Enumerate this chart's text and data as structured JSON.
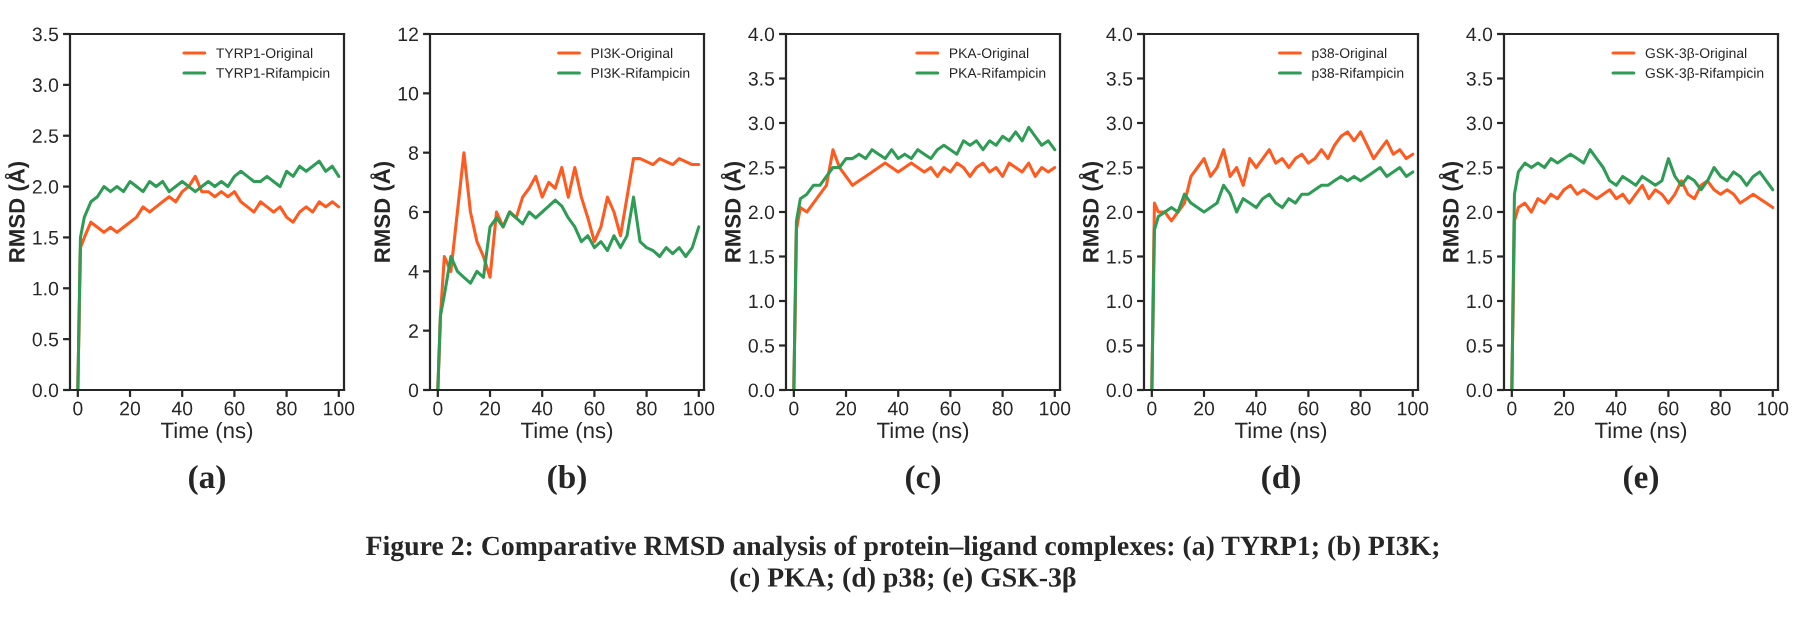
{
  "chart_data": [
    {
      "type": "line",
      "xlabel": "Time (ns)",
      "ylabel": "RMSD (Å)",
      "annotations": [
        "(a)"
      ],
      "xlim": [
        -3,
        102
      ],
      "xticks": [
        0,
        20,
        40,
        60,
        80,
        100
      ],
      "ylim": [
        0,
        3.5
      ],
      "yticks": [
        {
          "value": 0,
          "label": "0.0"
        },
        0.5,
        {
          "value": 1,
          "label": "1.0"
        },
        1.5,
        {
          "value": 2,
          "label": "2.0"
        },
        2.5,
        {
          "value": 3,
          "label": "3.0"
        },
        3.5
      ],
      "grid": false,
      "legend": "top right",
      "x": [
        0,
        1,
        2.5,
        5,
        7.5,
        10,
        12.5,
        15,
        17.5,
        20,
        22.5,
        25,
        27.5,
        30,
        32.5,
        35,
        37.5,
        40,
        42.5,
        45,
        47.5,
        50,
        52.5,
        55,
        57.5,
        60,
        62.5,
        65,
        67.5,
        70,
        72.5,
        75,
        77.5,
        80,
        82.5,
        85,
        87.5,
        90,
        92.5,
        95,
        97.5,
        100
      ],
      "series": [
        {
          "name": "TYRP1-Original",
          "color": "#ff5a1f",
          "values": [
            0,
            1.4,
            1.5,
            1.65,
            1.6,
            1.55,
            1.6,
            1.55,
            1.6,
            1.65,
            1.7,
            1.8,
            1.75,
            1.8,
            1.85,
            1.9,
            1.85,
            1.95,
            2.0,
            2.1,
            1.95,
            1.95,
            1.9,
            1.95,
            1.9,
            1.95,
            1.85,
            1.8,
            1.75,
            1.85,
            1.8,
            1.75,
            1.8,
            1.7,
            1.65,
            1.75,
            1.8,
            1.75,
            1.85,
            1.8,
            1.85,
            1.8
          ]
        },
        {
          "name": "TYRP1-Rifampicin",
          "color": "#2e9c55",
          "values": [
            0,
            1.5,
            1.7,
            1.85,
            1.9,
            2.0,
            1.95,
            2.0,
            1.95,
            2.05,
            2.0,
            1.95,
            2.05,
            2.0,
            2.05,
            1.95,
            2.0,
            2.05,
            2.0,
            1.95,
            2.0,
            2.05,
            2.0,
            2.05,
            2.0,
            2.1,
            2.15,
            2.1,
            2.05,
            2.05,
            2.1,
            2.05,
            2.0,
            2.15,
            2.1,
            2.2,
            2.15,
            2.2,
            2.25,
            2.15,
            2.2,
            2.1
          ]
        }
      ]
    },
    {
      "type": "line",
      "xlabel": "Time (ns)",
      "ylabel": "RMSD (Å)",
      "annotations": [
        "(b)"
      ],
      "xlim": [
        -3,
        102
      ],
      "xticks": [
        0,
        20,
        40,
        60,
        80,
        100
      ],
      "ylim": [
        0,
        12
      ],
      "yticks": [
        0,
        2,
        4,
        6,
        8,
        10,
        12
      ],
      "grid": false,
      "legend": "top right",
      "x": [
        0,
        1,
        2.5,
        5,
        7.5,
        10,
        12.5,
        15,
        17.5,
        20,
        22.5,
        25,
        27.5,
        30,
        32.5,
        35,
        37.5,
        40,
        42.5,
        45,
        47.5,
        50,
        52.5,
        55,
        57.5,
        60,
        62.5,
        65,
        67.5,
        70,
        72.5,
        75,
        77.5,
        80,
        82.5,
        85,
        87.5,
        90,
        92.5,
        95,
        97.5,
        100
      ],
      "series": [
        {
          "name": "PI3K-Original",
          "color": "#ff5a1f",
          "values": [
            0,
            2.5,
            4.5,
            4,
            6,
            8,
            6,
            5,
            4.5,
            3.8,
            6,
            5.5,
            6,
            5.8,
            6.5,
            6.8,
            7.2,
            6.5,
            7,
            6.8,
            7.5,
            6.5,
            7.5,
            6.5,
            5.8,
            5,
            5.5,
            6.5,
            6,
            5.2,
            6.5,
            7.8,
            7.8,
            7.7,
            7.6,
            7.8,
            7.7,
            7.6,
            7.8,
            7.7,
            7.6,
            7.6
          ]
        },
        {
          "name": "PI3K-Rifampicin",
          "color": "#2e9c55",
          "values": [
            0,
            2.5,
            3.2,
            4.5,
            4,
            3.8,
            3.6,
            4,
            3.8,
            5.5,
            5.8,
            5.5,
            6,
            5.8,
            5.6,
            6,
            5.8,
            6,
            6.2,
            6.4,
            6.2,
            5.8,
            5.5,
            5,
            5.2,
            4.8,
            5,
            4.7,
            5.2,
            4.8,
            5.2,
            6.5,
            5,
            4.8,
            4.7,
            4.5,
            4.8,
            4.6,
            4.8,
            4.5,
            4.8,
            5.5
          ]
        }
      ]
    },
    {
      "type": "line",
      "xlabel": "Time (ns)",
      "ylabel": "RMSD (Å)",
      "annotations": [
        "(c)"
      ],
      "xlim": [
        -3,
        102
      ],
      "xticks": [
        0,
        20,
        40,
        60,
        80,
        100
      ],
      "ylim": [
        0,
        4
      ],
      "yticks": [
        {
          "value": 0,
          "label": "0.0"
        },
        0.5,
        {
          "value": 1,
          "label": "1.0"
        },
        1.5,
        {
          "value": 2,
          "label": "2.0"
        },
        2.5,
        {
          "value": 3,
          "label": "3.0"
        },
        3.5,
        {
          "value": 4,
          "label": "4.0"
        }
      ],
      "grid": false,
      "legend": "top right",
      "x": [
        0,
        1,
        2.5,
        5,
        7.5,
        10,
        12.5,
        15,
        17.5,
        20,
        22.5,
        25,
        27.5,
        30,
        32.5,
        35,
        37.5,
        40,
        42.5,
        45,
        47.5,
        50,
        52.5,
        55,
        57.5,
        60,
        62.5,
        65,
        67.5,
        70,
        72.5,
        75,
        77.5,
        80,
        82.5,
        85,
        87.5,
        90,
        92.5,
        95,
        97.5,
        100
      ],
      "series": [
        {
          "name": "PKA-Original",
          "color": "#ff5a1f",
          "values": [
            0,
            1.8,
            2.05,
            2.0,
            2.1,
            2.2,
            2.3,
            2.7,
            2.5,
            2.4,
            2.3,
            2.35,
            2.4,
            2.45,
            2.5,
            2.55,
            2.5,
            2.45,
            2.5,
            2.55,
            2.5,
            2.45,
            2.5,
            2.4,
            2.5,
            2.45,
            2.55,
            2.5,
            2.4,
            2.5,
            2.55,
            2.45,
            2.5,
            2.4,
            2.55,
            2.5,
            2.45,
            2.55,
            2.4,
            2.5,
            2.45,
            2.5
          ]
        },
        {
          "name": "PKA-Rifampicin",
          "color": "#2e9c55",
          "values": [
            0,
            1.9,
            2.15,
            2.2,
            2.3,
            2.3,
            2.4,
            2.5,
            2.5,
            2.6,
            2.6,
            2.65,
            2.6,
            2.7,
            2.65,
            2.6,
            2.7,
            2.6,
            2.65,
            2.6,
            2.7,
            2.65,
            2.6,
            2.7,
            2.75,
            2.7,
            2.65,
            2.8,
            2.75,
            2.8,
            2.7,
            2.8,
            2.75,
            2.85,
            2.8,
            2.9,
            2.8,
            2.95,
            2.85,
            2.75,
            2.8,
            2.7
          ]
        }
      ]
    },
    {
      "type": "line",
      "xlabel": "Time (ns)",
      "ylabel": "RMSD (Å)",
      "annotations": [
        "(d)"
      ],
      "xlim": [
        -3,
        102
      ],
      "xticks": [
        0,
        20,
        40,
        60,
        80,
        100
      ],
      "ylim": [
        0,
        4
      ],
      "yticks": [
        {
          "value": 0,
          "label": "0.0"
        },
        0.5,
        {
          "value": 1,
          "label": "1.0"
        },
        1.5,
        {
          "value": 2,
          "label": "2.0"
        },
        2.5,
        {
          "value": 3,
          "label": "3.0"
        },
        3.5,
        {
          "value": 4,
          "label": "4.0"
        }
      ],
      "grid": false,
      "legend": "top right",
      "x": [
        0,
        1,
        2.5,
        5,
        7.5,
        10,
        12.5,
        15,
        17.5,
        20,
        22.5,
        25,
        27.5,
        30,
        32.5,
        35,
        37.5,
        40,
        42.5,
        45,
        47.5,
        50,
        52.5,
        55,
        57.5,
        60,
        62.5,
        65,
        67.5,
        70,
        72.5,
        75,
        77.5,
        80,
        82.5,
        85,
        87.5,
        90,
        92.5,
        95,
        97.5,
        100
      ],
      "series": [
        {
          "name": "p38-Original",
          "color": "#ff5a1f",
          "values": [
            0,
            2.1,
            2.0,
            2.0,
            1.9,
            2.0,
            2.1,
            2.4,
            2.5,
            2.6,
            2.4,
            2.5,
            2.7,
            2.4,
            2.5,
            2.3,
            2.6,
            2.5,
            2.6,
            2.7,
            2.55,
            2.6,
            2.5,
            2.6,
            2.65,
            2.55,
            2.6,
            2.7,
            2.6,
            2.75,
            2.85,
            2.9,
            2.8,
            2.9,
            2.75,
            2.6,
            2.7,
            2.8,
            2.65,
            2.7,
            2.6,
            2.65
          ]
        },
        {
          "name": "p38-Rifampicin",
          "color": "#2e9c55",
          "values": [
            0,
            1.8,
            1.95,
            2.0,
            2.05,
            2.0,
            2.2,
            2.1,
            2.05,
            2.0,
            2.05,
            2.1,
            2.3,
            2.2,
            2.0,
            2.15,
            2.1,
            2.05,
            2.15,
            2.2,
            2.1,
            2.05,
            2.15,
            2.1,
            2.2,
            2.2,
            2.25,
            2.3,
            2.3,
            2.35,
            2.4,
            2.35,
            2.4,
            2.35,
            2.4,
            2.45,
            2.5,
            2.4,
            2.45,
            2.5,
            2.4,
            2.45
          ]
        }
      ]
    },
    {
      "type": "line",
      "xlabel": "Time (ns)",
      "ylabel": "RMSD (Å)",
      "annotations": [
        "(e)",
        "Figure 2: Comparative RMSD analysis of protein–ligand complexes: (a) TYRP1; (b) PI3K;\n(c) PKA; (d) p38; (e) GSK-3β"
      ],
      "xlim": [
        -3,
        102
      ],
      "xticks": [
        0,
        20,
        40,
        60,
        80,
        100
      ],
      "ylim": [
        0,
        4
      ],
      "yticks": [
        {
          "value": 0,
          "label": "0.0"
        },
        0.5,
        {
          "value": 1,
          "label": "1.0"
        },
        1.5,
        {
          "value": 2,
          "label": "2.0"
        },
        2.5,
        {
          "value": 3,
          "label": "3.0"
        },
        3.5,
        {
          "value": 4,
          "label": "4.0"
        }
      ],
      "grid": false,
      "legend": "top right",
      "x": [
        0,
        1,
        2.5,
        5,
        7.5,
        10,
        12.5,
        15,
        17.5,
        20,
        22.5,
        25,
        27.5,
        30,
        32.5,
        35,
        37.5,
        40,
        42.5,
        45,
        47.5,
        50,
        52.5,
        55,
        57.5,
        60,
        62.5,
        65,
        67.5,
        70,
        72.5,
        75,
        77.5,
        80,
        82.5,
        85,
        87.5,
        90,
        92.5,
        95,
        97.5,
        100
      ],
      "series": [
        {
          "name": "GSK-3β-Original",
          "color": "#ff5a1f",
          "values": [
            0,
            1.9,
            2.05,
            2.1,
            2.0,
            2.15,
            2.1,
            2.2,
            2.15,
            2.25,
            2.3,
            2.2,
            2.25,
            2.2,
            2.15,
            2.2,
            2.25,
            2.15,
            2.2,
            2.1,
            2.2,
            2.3,
            2.15,
            2.25,
            2.2,
            2.1,
            2.2,
            2.35,
            2.2,
            2.15,
            2.3,
            2.35,
            2.25,
            2.2,
            2.25,
            2.2,
            2.1,
            2.15,
            2.2,
            2.15,
            2.1,
            2.05
          ]
        },
        {
          "name": "GSK-3β-Rifampicin",
          "color": "#2e9c55",
          "values": [
            0,
            2.2,
            2.45,
            2.55,
            2.5,
            2.55,
            2.5,
            2.6,
            2.55,
            2.6,
            2.65,
            2.6,
            2.55,
            2.7,
            2.6,
            2.5,
            2.35,
            2.3,
            2.4,
            2.35,
            2.3,
            2.4,
            2.35,
            2.3,
            2.35,
            2.6,
            2.4,
            2.3,
            2.4,
            2.35,
            2.25,
            2.35,
            2.5,
            2.4,
            2.35,
            2.45,
            2.4,
            2.3,
            2.4,
            2.45,
            2.35,
            2.25
          ]
        }
      ]
    }
  ]
}
